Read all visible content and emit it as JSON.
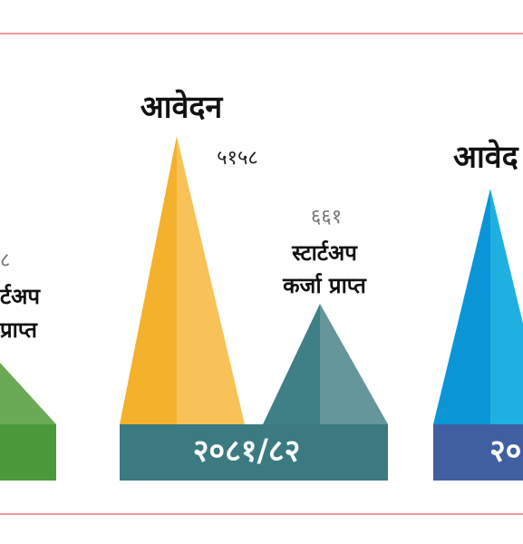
{
  "left_panel": {
    "number": "८",
    "label_lines": [
      "र्टअप",
      "प्राप्त"
    ]
  },
  "center_panel": {
    "applications_label": "आवेदन",
    "applications_number": "५१५८",
    "startup_number": "६६१",
    "startup_label_lines": [
      "स्टार्टअप",
      "कर्जा प्राप्त"
    ],
    "year": "२०८१/८२"
  },
  "right_panel": {
    "applications_label": "आवेद",
    "year": "२०"
  }
}
